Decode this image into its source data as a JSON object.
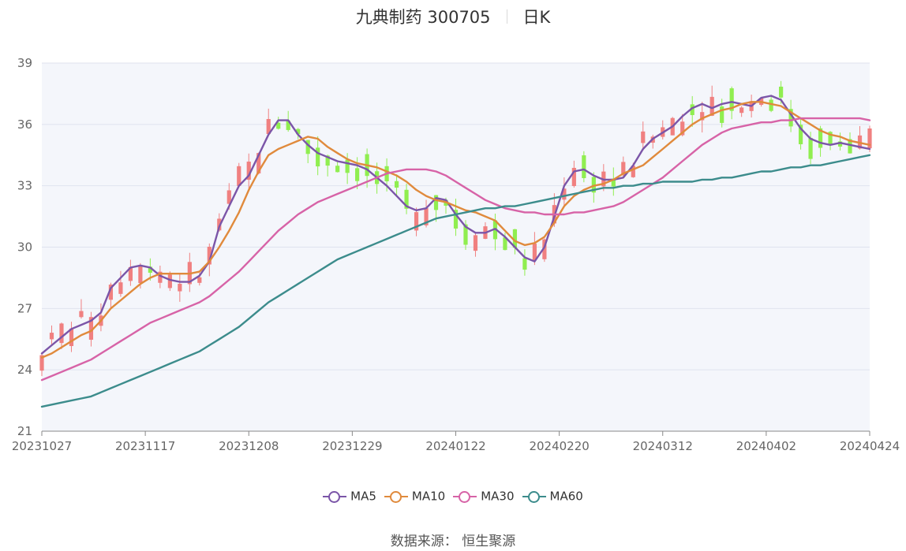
{
  "header": {
    "title": "九典制药 300705",
    "period": "日K"
  },
  "source_text": "数据来源： 恒生聚源",
  "chart_data": {
    "type": "candlestick",
    "x_ticks": [
      "20231027",
      "20231117",
      "20231208",
      "20231229",
      "20240122",
      "20240220",
      "20240312",
      "20240402",
      "20240424"
    ],
    "y_ticks": [
      21,
      24,
      27,
      30,
      33,
      36,
      39
    ],
    "ylim": [
      21,
      39
    ],
    "grid": true,
    "legend_position": "bottom",
    "colors": {
      "up": "#f08080",
      "down": "#90ee50"
    },
    "series": [
      {
        "name": "MA5",
        "color": "#7b55a8",
        "key_points": [
          24.8,
          25.2,
          25.6,
          26.0,
          26.2,
          26.4,
          26.8,
          28.0,
          28.5,
          29.0,
          29.1,
          29.0,
          28.6,
          28.4,
          28.3,
          28.3,
          28.6,
          29.3,
          31.0,
          32.0,
          33.0,
          33.5,
          34.5,
          35.5,
          36.2,
          36.2,
          35.5,
          35.0,
          34.6,
          34.4,
          34.2,
          34.1,
          34.0,
          33.8,
          33.4,
          33.0,
          32.5,
          32.0,
          31.8,
          31.9,
          32.4,
          32.3,
          31.6,
          31.0,
          30.7,
          30.7,
          30.9,
          30.5,
          30.0,
          29.5,
          29.3,
          30.0,
          31.5,
          33.0,
          33.7,
          33.8,
          33.5,
          33.3,
          33.3,
          33.4,
          34.0,
          34.8,
          35.3,
          35.6,
          35.9,
          36.4,
          36.8,
          37.0,
          36.8,
          37.0,
          37.1,
          37.0,
          36.9,
          37.3,
          37.4,
          37.2,
          36.5,
          35.8,
          35.3,
          35.1,
          35.0,
          35.1,
          35.0,
          34.9,
          34.8
        ]
      },
      {
        "name": "MA10",
        "color": "#e08a3c",
        "key_points": [
          24.6,
          24.8,
          25.1,
          25.4,
          25.7,
          25.9,
          26.4,
          27.0,
          27.4,
          27.8,
          28.2,
          28.5,
          28.7,
          28.7,
          28.7,
          28.7,
          28.8,
          29.3,
          30.0,
          30.8,
          31.7,
          32.8,
          33.7,
          34.5,
          34.8,
          35.0,
          35.2,
          35.4,
          35.3,
          34.9,
          34.6,
          34.3,
          34.1,
          34.0,
          33.9,
          33.7,
          33.5,
          33.2,
          32.8,
          32.5,
          32.3,
          32.2,
          32.0,
          31.8,
          31.7,
          31.5,
          31.3,
          30.8,
          30.3,
          30.1,
          30.2,
          30.5,
          31.2,
          32.0,
          32.5,
          32.8,
          33.0,
          33.1,
          33.3,
          33.6,
          33.8,
          34.0,
          34.4,
          34.8,
          35.2,
          35.6,
          36.0,
          36.3,
          36.5,
          36.7,
          36.8,
          37.0,
          37.1,
          37.1,
          37.0,
          36.9,
          36.6,
          36.3,
          36.0,
          35.7,
          35.5,
          35.4,
          35.2,
          35.1,
          35.0
        ]
      },
      {
        "name": "MA30",
        "color": "#d763a7",
        "key_points": [
          23.5,
          23.7,
          23.9,
          24.1,
          24.3,
          24.5,
          24.8,
          25.1,
          25.4,
          25.7,
          26.0,
          26.3,
          26.5,
          26.7,
          26.9,
          27.1,
          27.3,
          27.6,
          28.0,
          28.4,
          28.8,
          29.3,
          29.8,
          30.3,
          30.8,
          31.2,
          31.6,
          31.9,
          32.2,
          32.4,
          32.6,
          32.8,
          33.0,
          33.2,
          33.4,
          33.6,
          33.7,
          33.8,
          33.8,
          33.8,
          33.7,
          33.5,
          33.2,
          32.9,
          32.6,
          32.3,
          32.1,
          31.9,
          31.8,
          31.7,
          31.7,
          31.6,
          31.6,
          31.6,
          31.7,
          31.7,
          31.8,
          31.9,
          32.0,
          32.2,
          32.5,
          32.8,
          33.1,
          33.4,
          33.8,
          34.2,
          34.6,
          35.0,
          35.3,
          35.6,
          35.8,
          35.9,
          36.0,
          36.1,
          36.1,
          36.2,
          36.2,
          36.3,
          36.3,
          36.3,
          36.3,
          36.3,
          36.3,
          36.3,
          36.2
        ]
      },
      {
        "name": "MA60",
        "color": "#3c8c8c",
        "key_points": [
          22.2,
          22.3,
          22.4,
          22.5,
          22.6,
          22.7,
          22.9,
          23.1,
          23.3,
          23.5,
          23.7,
          23.9,
          24.1,
          24.3,
          24.5,
          24.7,
          24.9,
          25.2,
          25.5,
          25.8,
          26.1,
          26.5,
          26.9,
          27.3,
          27.6,
          27.9,
          28.2,
          28.5,
          28.8,
          29.1,
          29.4,
          29.6,
          29.8,
          30.0,
          30.2,
          30.4,
          30.6,
          30.8,
          31.0,
          31.2,
          31.4,
          31.5,
          31.6,
          31.7,
          31.8,
          31.9,
          31.9,
          32.0,
          32.0,
          32.1,
          32.2,
          32.3,
          32.4,
          32.5,
          32.6,
          32.7,
          32.8,
          32.9,
          32.9,
          33.0,
          33.0,
          33.1,
          33.1,
          33.2,
          33.2,
          33.2,
          33.2,
          33.3,
          33.3,
          33.4,
          33.4,
          33.5,
          33.6,
          33.7,
          33.7,
          33.8,
          33.9,
          33.9,
          34.0,
          34.0,
          34.1,
          34.2,
          34.3,
          34.4,
          34.5
        ]
      }
    ]
  }
}
